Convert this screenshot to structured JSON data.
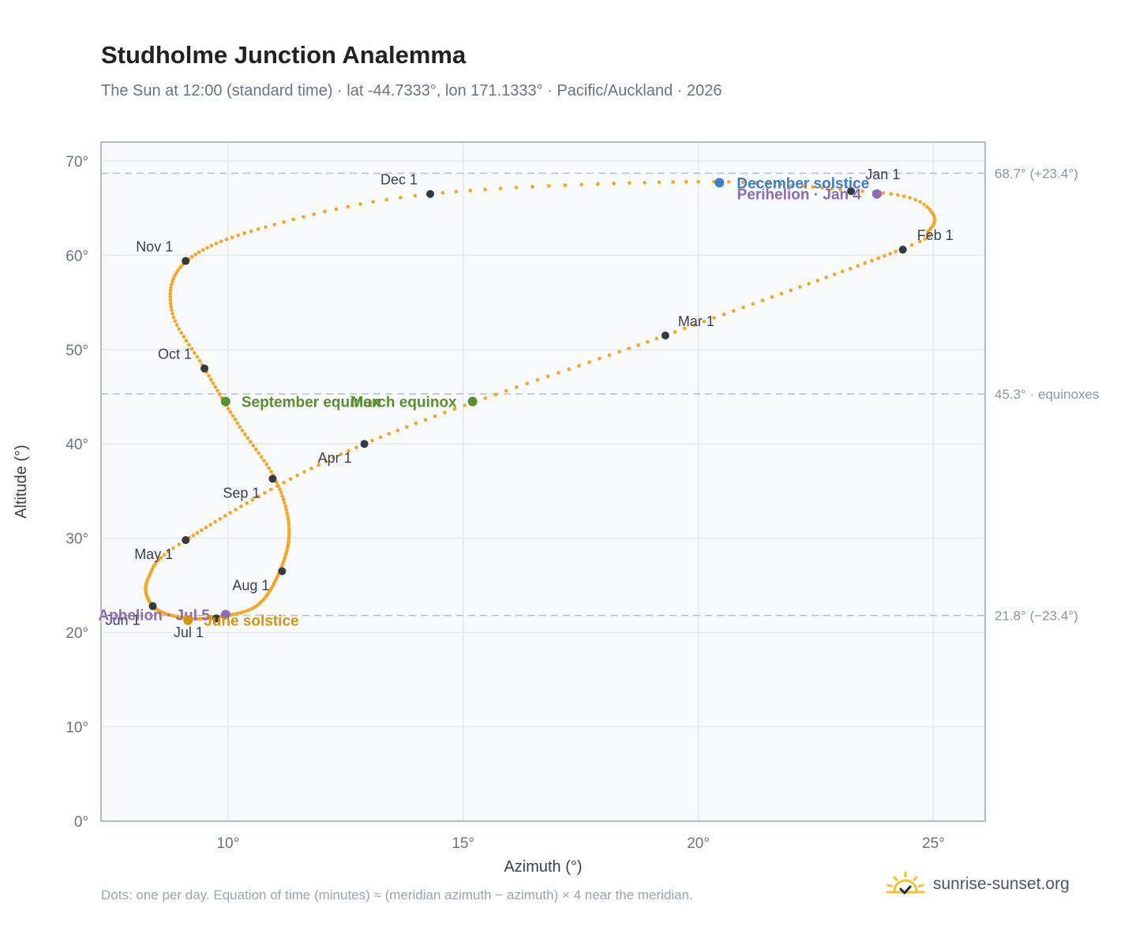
{
  "header": {
    "title": "Studholme Junction Analemma",
    "subtitle": "The Sun at 12:00 (standard time) · lat -44.7333°, lon 171.1333° · Pacific/Auckland · 2026"
  },
  "footer": {
    "note": "Dots: one per day. Equation of time (minutes) ≈ (meridian azimuth − azimuth) × 4 near the meridian.",
    "brand": "sunrise-sunset.org",
    "brand_icon": "sun-check-icon"
  },
  "colors": {
    "curve": "#f5a623",
    "month_dot": "#343a40",
    "solstice_june": "#d4940f",
    "solstice_december": "#3d7cc9",
    "equinox": "#5a8f2e",
    "apsis": "#8e6bb5",
    "reference_line": "#b8c2cf",
    "plot_bg": "#f8fafc",
    "grid": "#e5e9ef",
    "frame": "#9aa5b4"
  },
  "chart_data": {
    "type": "scatter",
    "xlabel": "Azimuth (°)",
    "ylabel": "Altitude (°)",
    "xlim": [
      7.3,
      26.1
    ],
    "ylim": [
      0,
      72
    ],
    "x_ticks": [
      10,
      15,
      20,
      25
    ],
    "x_tick_labels": [
      "10°",
      "15°",
      "20°",
      "25°"
    ],
    "y_ticks": [
      0,
      10,
      20,
      30,
      40,
      50,
      60,
      70
    ],
    "y_tick_labels": [
      "0°",
      "10°",
      "20°",
      "30°",
      "40°",
      "50°",
      "60°",
      "70°"
    ],
    "grid": true,
    "curve_keypoints": [
      {
        "day": 0,
        "az": 23.2,
        "alt": 66.9
      },
      {
        "day": 7,
        "az": 24.5,
        "alt": 66.1
      },
      {
        "day": 14,
        "az": 25.0,
        "alt": 64.3
      },
      {
        "day": 21,
        "az": 24.9,
        "alt": 62.6
      },
      {
        "day": 31,
        "az": 24.3,
        "alt": 60.6
      },
      {
        "day": 59,
        "az": 19.3,
        "alt": 51.5
      },
      {
        "day": 90,
        "az": 12.9,
        "alt": 40.0
      },
      {
        "day": 120,
        "az": 9.1,
        "alt": 29.8
      },
      {
        "day": 135,
        "az": 8.3,
        "alt": 25.7
      },
      {
        "day": 151,
        "az": 8.4,
        "alt": 22.8
      },
      {
        "day": 167,
        "az": 9.0,
        "alt": 21.6
      },
      {
        "day": 181,
        "az": 9.7,
        "alt": 21.6
      },
      {
        "day": 196,
        "az": 10.6,
        "alt": 22.8
      },
      {
        "day": 212,
        "az": 11.1,
        "alt": 26.5
      },
      {
        "day": 228,
        "az": 11.3,
        "alt": 31.0
      },
      {
        "day": 243,
        "az": 11.0,
        "alt": 36.3
      },
      {
        "day": 258,
        "az": 10.2,
        "alt": 42.2
      },
      {
        "day": 273,
        "az": 9.5,
        "alt": 48.0
      },
      {
        "day": 288,
        "az": 8.8,
        "alt": 54.2
      },
      {
        "day": 304,
        "az": 9.1,
        "alt": 59.3
      },
      {
        "day": 320,
        "az": 10.8,
        "alt": 63.0
      },
      {
        "day": 334,
        "az": 14.3,
        "alt": 66.5
      },
      {
        "day": 352,
        "az": 20.0,
        "alt": 67.8
      },
      {
        "day": 365,
        "az": 23.2,
        "alt": 66.9
      }
    ],
    "month_markers": [
      {
        "label": "Jan 1",
        "az": 23.25,
        "alt": 66.8,
        "anchor": "start",
        "dx": 18,
        "dy": -15
      },
      {
        "label": "Feb 1",
        "az": 24.35,
        "alt": 60.6,
        "anchor": "start",
        "dx": 18,
        "dy": -12
      },
      {
        "label": "Mar 1",
        "az": 19.3,
        "alt": 51.5,
        "anchor": "start",
        "dx": 16,
        "dy": -12
      },
      {
        "label": "Apr 1",
        "az": 12.9,
        "alt": 40.0,
        "anchor": "end",
        "dx": -16,
        "dy": 24
      },
      {
        "label": "May 1",
        "az": 9.1,
        "alt": 29.8,
        "anchor": "end",
        "dx": -16,
        "dy": 24
      },
      {
        "label": "Jun 1",
        "az": 8.4,
        "alt": 22.8,
        "anchor": "end",
        "dx": -16,
        "dy": 24
      },
      {
        "label": "Jul 1",
        "az": 9.75,
        "alt": 21.5,
        "anchor": "end",
        "dx": -16,
        "dy": 24
      },
      {
        "label": "Aug 1",
        "az": 11.15,
        "alt": 26.5,
        "anchor": "end",
        "dx": -16,
        "dy": 24
      },
      {
        "label": "Sep 1",
        "az": 10.95,
        "alt": 36.3,
        "anchor": "end",
        "dx": -16,
        "dy": 24
      },
      {
        "label": "Oct 1",
        "az": 9.5,
        "alt": 48.0,
        "anchor": "end",
        "dx": -16,
        "dy": -12
      },
      {
        "label": "Nov 1",
        "az": 9.1,
        "alt": 59.4,
        "anchor": "end",
        "dx": -16,
        "dy": -12
      },
      {
        "label": "Dec 1",
        "az": 14.3,
        "alt": 66.5,
        "anchor": "end",
        "dx": -16,
        "dy": -12
      }
    ],
    "events": [
      {
        "label": "December solstice",
        "az": 20.45,
        "alt": 67.7,
        "color_key": "solstice_december",
        "anchor": "start",
        "dx": 22,
        "dy": 7
      },
      {
        "label": "Perihelion · Jan 4",
        "az": 23.8,
        "alt": 66.5,
        "color_key": "apsis",
        "anchor": "end",
        "dx": -20,
        "dy": 7
      },
      {
        "label": "September equinox",
        "az": 9.95,
        "alt": 44.5,
        "color_key": "equinox",
        "anchor": "start",
        "dx": 20,
        "dy": 7
      },
      {
        "label": "March equinox",
        "az": 15.2,
        "alt": 44.5,
        "color_key": "equinox",
        "anchor": "end",
        "dx": -20,
        "dy": 7
      },
      {
        "label": "Aphelion · Jul 5",
        "az": 9.95,
        "alt": 21.9,
        "color_key": "apsis",
        "anchor": "end",
        "dx": -20,
        "dy": 7
      },
      {
        "label": "June solstice",
        "az": 9.15,
        "alt": 21.3,
        "color_key": "solstice_june",
        "anchor": "start",
        "dx": 20,
        "dy": 7
      }
    ],
    "reference_lines": [
      {
        "alt": 68.7,
        "label": "68.7° (+23.4°)"
      },
      {
        "alt": 45.3,
        "label": "45.3° · equinoxes"
      },
      {
        "alt": 21.8,
        "label": "21.8° (−23.4°)"
      }
    ]
  }
}
